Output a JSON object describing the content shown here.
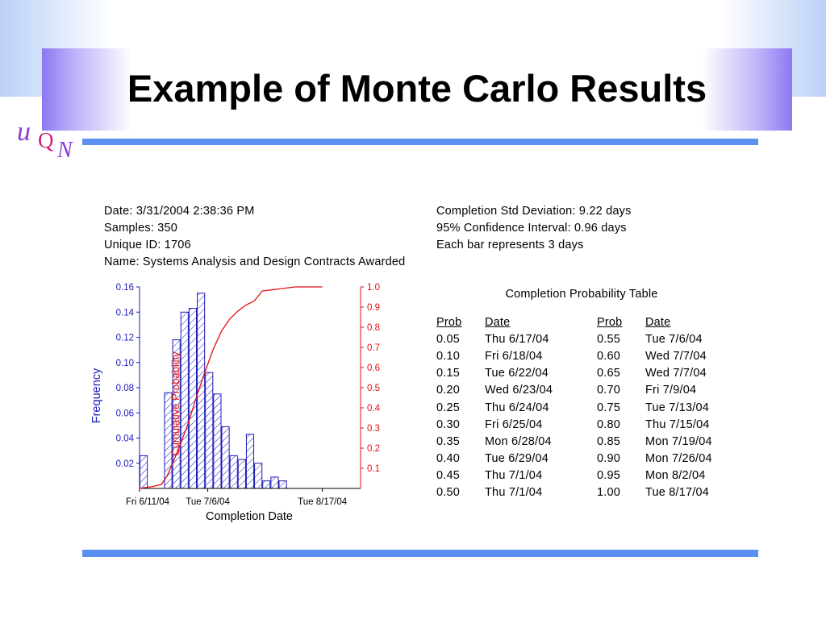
{
  "slide": {
    "title": "Example of Monte Carlo Results",
    "logo": {
      "l1": "u",
      "l2": "Q",
      "l3": "N"
    }
  },
  "info": {
    "left": [
      "Date: 3/31/2004 2:38:36 PM",
      "Samples: 350",
      "Unique ID: 1706",
      "Name: Systems Analysis and Design Contracts Awarded"
    ],
    "right": [
      "Completion Std Deviation: 9.22 days",
      "95% Confidence Interval: 0.96 days",
      "Each bar represents 3 days"
    ]
  },
  "table": {
    "caption": "Completion Probability Table",
    "headers": [
      "Prob",
      "Date",
      "Prob",
      "Date"
    ],
    "rows": [
      [
        "0.05",
        "Thu 6/17/04",
        "0.55",
        "Tue 7/6/04"
      ],
      [
        "0.10",
        "Fri 6/18/04",
        "0.60",
        "Wed 7/7/04"
      ],
      [
        "0.15",
        "Tue 6/22/04",
        "0.65",
        "Wed 7/7/04"
      ],
      [
        "0.20",
        "Wed 6/23/04",
        "0.70",
        "Fri 7/9/04"
      ],
      [
        "0.25",
        "Thu 6/24/04",
        "0.75",
        "Tue 7/13/04"
      ],
      [
        "0.30",
        "Fri 6/25/04",
        "0.80",
        "Thu 7/15/04"
      ],
      [
        "0.35",
        "Mon 6/28/04",
        "0.85",
        "Mon 7/19/04"
      ],
      [
        "0.40",
        "Tue 6/29/04",
        "0.90",
        "Mon 7/26/04"
      ],
      [
        "0.45",
        "Thu 7/1/04",
        "0.95",
        "Mon 8/2/04"
      ],
      [
        "0.50",
        "Thu 7/1/04",
        "1.00",
        "Tue 8/17/04"
      ]
    ]
  },
  "chart_data": {
    "type": "bar",
    "xlabel": "Completion Date",
    "ylabel": "Frequency",
    "y2label": "Cumulative Probability",
    "ylim": [
      0,
      0.16
    ],
    "y2lim": [
      0,
      1.0
    ],
    "yticks": [
      "0.02",
      "0.04",
      "0.06",
      "0.08",
      "0.10",
      "0.12",
      "0.14",
      "0.16"
    ],
    "y2ticks": [
      "0.1",
      "0.2",
      "0.3",
      "0.4",
      "0.5",
      "0.6",
      "0.7",
      "0.8",
      "0.9",
      "1.0"
    ],
    "xticks": [
      {
        "label": "Fri 6/11/04",
        "x": 0
      },
      {
        "label": "Tue 7/6/04",
        "x": 25
      },
      {
        "label": "Tue 8/17/04",
        "x": 67
      }
    ],
    "x_range": [
      0,
      81
    ],
    "bin_width_days": 3,
    "bars": [
      {
        "x": 0,
        "y": 0.026
      },
      {
        "x": 9,
        "y": 0.076
      },
      {
        "x": 12,
        "y": 0.118
      },
      {
        "x": 15,
        "y": 0.14
      },
      {
        "x": 18,
        "y": 0.143
      },
      {
        "x": 21,
        "y": 0.155
      },
      {
        "x": 24,
        "y": 0.092
      },
      {
        "x": 27,
        "y": 0.075
      },
      {
        "x": 30,
        "y": 0.049
      },
      {
        "x": 33,
        "y": 0.026
      },
      {
        "x": 36,
        "y": 0.023
      },
      {
        "x": 39,
        "y": 0.043
      },
      {
        "x": 42,
        "y": 0.02
      },
      {
        "x": 45,
        "y": 0.006
      },
      {
        "x": 48,
        "y": 0.009
      },
      {
        "x": 51,
        "y": 0.006
      }
    ],
    "cumulative": [
      {
        "x": 0,
        "y": 0.0
      },
      {
        "x": 5,
        "y": 0.01
      },
      {
        "x": 8,
        "y": 0.02
      },
      {
        "x": 10,
        "y": 0.06
      },
      {
        "x": 12,
        "y": 0.12
      },
      {
        "x": 15,
        "y": 0.22
      },
      {
        "x": 18,
        "y": 0.33
      },
      {
        "x": 21,
        "y": 0.46
      },
      {
        "x": 24,
        "y": 0.58
      },
      {
        "x": 27,
        "y": 0.69
      },
      {
        "x": 30,
        "y": 0.78
      },
      {
        "x": 33,
        "y": 0.84
      },
      {
        "x": 36,
        "y": 0.88
      },
      {
        "x": 39,
        "y": 0.91
      },
      {
        "x": 42,
        "y": 0.93
      },
      {
        "x": 45,
        "y": 0.98
      },
      {
        "x": 48,
        "y": 0.985
      },
      {
        "x": 51,
        "y": 0.99
      },
      {
        "x": 57,
        "y": 1.0
      },
      {
        "x": 67,
        "y": 1.0
      }
    ],
    "colors": {
      "bar_stroke": "#1a1ab8",
      "bar_hatch": "#1a1ab8",
      "left_axis": "#1a1ab8",
      "right_axis": "#e01010",
      "cumulative_line": "#e01010"
    }
  }
}
